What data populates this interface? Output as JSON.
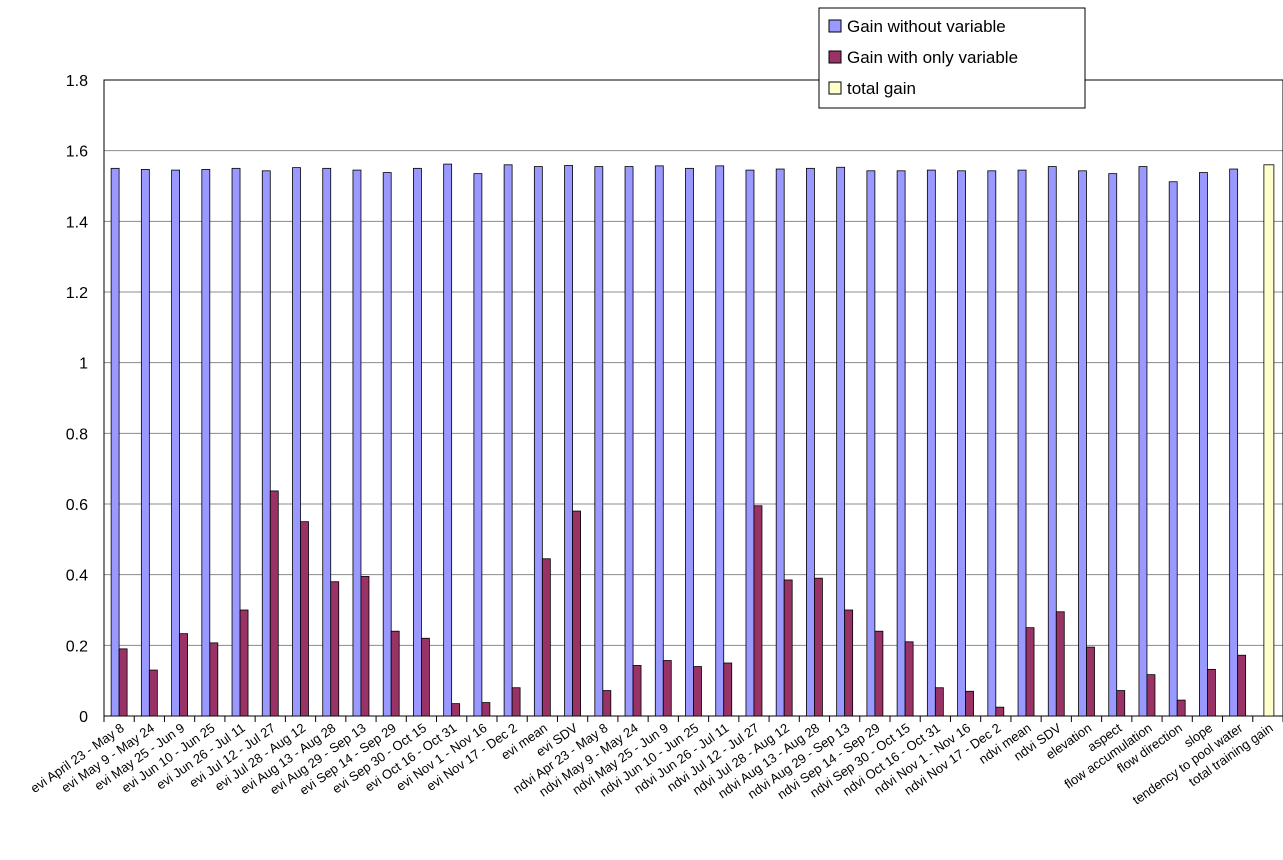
{
  "chart_data": {
    "type": "bar",
    "title": "",
    "xlabel": "",
    "ylabel": "",
    "ylim": [
      0,
      1.8
    ],
    "yticks": [
      "0",
      "0.2",
      "0.4",
      "0.6",
      "0.8",
      "1",
      "1.2",
      "1.4",
      "1.6",
      "1.8"
    ],
    "grid": "horizontal",
    "legend_position": "top-right",
    "categories": [
      "evi April 23 - May 8",
      "evi May 9 - May 24",
      "evi May 25 - Jun 9",
      "evi Jun 10 - Jun 25",
      "evi Jun 26 - Jul 11",
      "evi Jul 12 - Jul 27",
      "evi Jul 28 - Aug 12",
      "evi Aug 13 - Aug 28",
      "evi Aug 29 - Sep 13",
      "evi Sep 14 - Sep 29",
      "evi Sep 30 - Oct 15",
      "evi Oct 16 - Oct 31",
      "evi Nov 1 - Nov 16",
      "evi Nov 17 - Dec 2",
      "evi mean",
      "evi SDV",
      "ndvi Apr 23 - May 8",
      "ndvi May 9 - May 24",
      "ndvi May 25 - Jun 9",
      "ndvi Jun 10 - Jun 25",
      "ndvi Jun 26 - Jul 11",
      "ndvi Jul 12 - Jul 27",
      "ndvi Jul 28 - Aug 12",
      "ndvi Aug 13 - Aug 28",
      "ndvi Aug 29 - Sep 13",
      "ndvi Sep 14 - Sep 29",
      "ndvi Sep 30 - Oct 15",
      "ndvi Oct 16 - Oct 31",
      "ndvi Nov 1 - Nov 16",
      "ndvi Nov 17 - Dec 2",
      "ndvi mean",
      "ndvi SDV",
      "elevation",
      "aspect",
      "flow accumulation",
      "flow direction",
      "slope",
      "tendency to pool water",
      "total training gain"
    ],
    "series": [
      {
        "name": "Gain without variable",
        "color": "#9999ff",
        "values": [
          1.55,
          1.547,
          1.545,
          1.547,
          1.55,
          1.543,
          1.552,
          1.55,
          1.545,
          1.538,
          1.55,
          1.562,
          1.535,
          1.56,
          1.555,
          1.558,
          1.555,
          1.555,
          1.557,
          1.55,
          1.557,
          1.545,
          1.548,
          1.55,
          1.553,
          1.543,
          1.543,
          1.545,
          1.543,
          1.543,
          1.545,
          1.555,
          1.543,
          1.535,
          1.555,
          1.512,
          1.538,
          1.548,
          null
        ]
      },
      {
        "name": "Gain with only variable",
        "color": "#993366",
        "values": [
          0.19,
          0.13,
          0.233,
          0.207,
          0.3,
          0.637,
          0.55,
          0.38,
          0.395,
          0.24,
          0.22,
          0.035,
          0.038,
          0.08,
          0.445,
          0.58,
          0.072,
          0.143,
          0.157,
          0.14,
          0.15,
          0.595,
          0.385,
          0.39,
          0.3,
          0.24,
          0.21,
          0.08,
          0.07,
          0.025,
          0.25,
          0.295,
          0.195,
          0.072,
          0.117,
          0.045,
          0.132,
          0.172,
          null
        ]
      },
      {
        "name": "total gain",
        "color": "#ffffcc",
        "values": [
          null,
          null,
          null,
          null,
          null,
          null,
          null,
          null,
          null,
          null,
          null,
          null,
          null,
          null,
          null,
          null,
          null,
          null,
          null,
          null,
          null,
          null,
          null,
          null,
          null,
          null,
          null,
          null,
          null,
          null,
          null,
          null,
          null,
          null,
          null,
          null,
          null,
          null,
          1.56
        ]
      }
    ]
  }
}
